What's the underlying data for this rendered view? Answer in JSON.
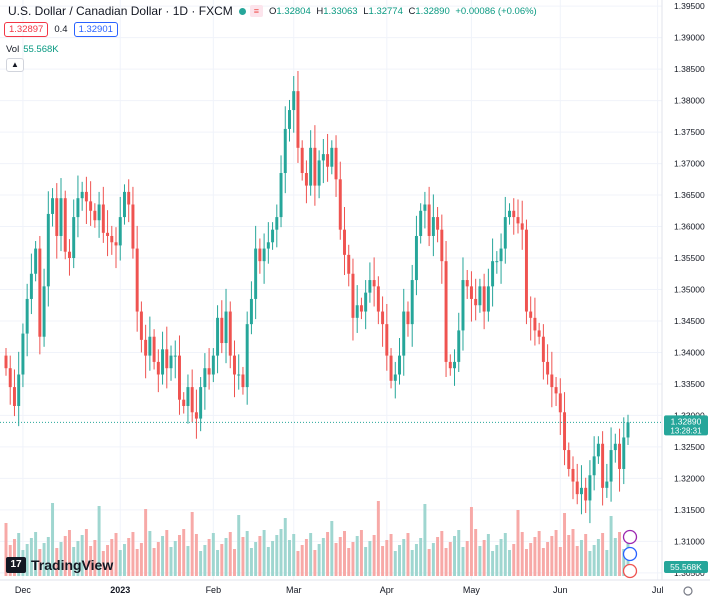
{
  "header": {
    "title": "U.S. Dollar / Canadian Dollar · 1D · FXCM",
    "alert_label": "≡",
    "ohlc": {
      "o_label": "O",
      "o": "1.32804",
      "h_label": "H",
      "h": "1.33063",
      "l_label": "L",
      "l": "1.32774",
      "c_label": "C",
      "c": "1.32890",
      "change": "+0.00086 (+0.06%)"
    }
  },
  "bidask": {
    "bid": "1.32897",
    "spread": "0.4",
    "ask": "1.32901"
  },
  "volume_legend": {
    "label": "Vol",
    "value": "55.568K"
  },
  "collapse_icon": "chevron-up-icon",
  "brand": "TradingView",
  "colors": {
    "up": "#26a69a",
    "down": "#ef5350",
    "up_vol": "#9fd6d0",
    "down_vol": "#f7a9a7",
    "price_tag": "#26a69a"
  },
  "chart_data": {
    "type": "candlestick",
    "symbol": "USDCAD",
    "y_ticks": [
      "1.39500",
      "1.39000",
      "1.38500",
      "1.38000",
      "1.37500",
      "1.37000",
      "1.36500",
      "1.36000",
      "1.35500",
      "1.35000",
      "1.34500",
      "1.34000",
      "1.33500",
      "1.33000",
      "1.32500",
      "1.32000",
      "1.31500",
      "1.31000",
      "1.30500"
    ],
    "ylim": [
      1.3045,
      1.3955
    ],
    "x_ticks": [
      "Dec",
      "2023",
      "Feb",
      "Mar",
      "Apr",
      "May",
      "Jun",
      "Jul"
    ],
    "x_tick_index": [
      4,
      27,
      49,
      68,
      90,
      110,
      131,
      154
    ],
    "current_price": "1.32890",
    "countdown": "13:28:31",
    "volume_tag": "55.568K",
    "closes": [
      1.3375,
      1.3345,
      1.3315,
      1.3365,
      1.343,
      1.3485,
      1.3525,
      1.3565,
      1.3425,
      1.3505,
      1.362,
      1.3645,
      1.3585,
      1.3645,
      1.356,
      1.355,
      1.3615,
      1.3645,
      1.3655,
      1.364,
      1.3625,
      1.361,
      1.3635,
      1.359,
      1.3585,
      1.3575,
      1.357,
      1.3615,
      1.3655,
      1.3635,
      1.3565,
      1.3465,
      1.342,
      1.3395,
      1.3425,
      1.3385,
      1.3365,
      1.3405,
      1.3375,
      1.3395,
      1.3395,
      1.3325,
      1.3315,
      1.3345,
      1.3305,
      1.3295,
      1.3345,
      1.3375,
      1.3365,
      1.3395,
      1.3455,
      1.3415,
      1.3465,
      1.3395,
      1.3365,
      1.3365,
      1.3345,
      1.3445,
      1.3485,
      1.3565,
      1.3545,
      1.3565,
      1.3575,
      1.3595,
      1.3615,
      1.3685,
      1.3755,
      1.3785,
      1.3815,
      1.3725,
      1.3685,
      1.3665,
      1.3725,
      1.3665,
      1.3705,
      1.3715,
      1.3695,
      1.3725,
      1.3675,
      1.3595,
      1.3555,
      1.3525,
      1.3455,
      1.3475,
      1.3465,
      1.3495,
      1.3515,
      1.3505,
      1.3465,
      1.3445,
      1.3395,
      1.3355,
      1.3365,
      1.3395,
      1.3465,
      1.3445,
      1.3515,
      1.3585,
      1.3625,
      1.3635,
      1.3585,
      1.3615,
      1.3595,
      1.3545,
      1.3385,
      1.3375,
      1.3385,
      1.3435,
      1.3515,
      1.3505,
      1.3485,
      1.3475,
      1.3505,
      1.3465,
      1.3505,
      1.3545,
      1.3545,
      1.3565,
      1.3615,
      1.3625,
      1.3615,
      1.3605,
      1.3595,
      1.3465,
      1.3455,
      1.3435,
      1.3425,
      1.3385,
      1.3365,
      1.3345,
      1.3335,
      1.3305,
      1.3245,
      1.3215,
      1.3195,
      1.3175,
      1.3185,
      1.3165,
      1.3205,
      1.3235,
      1.3255,
      1.3185,
      1.3195,
      1.3245,
      1.3255,
      1.3215,
      1.3265,
      1.3289
    ]
  }
}
